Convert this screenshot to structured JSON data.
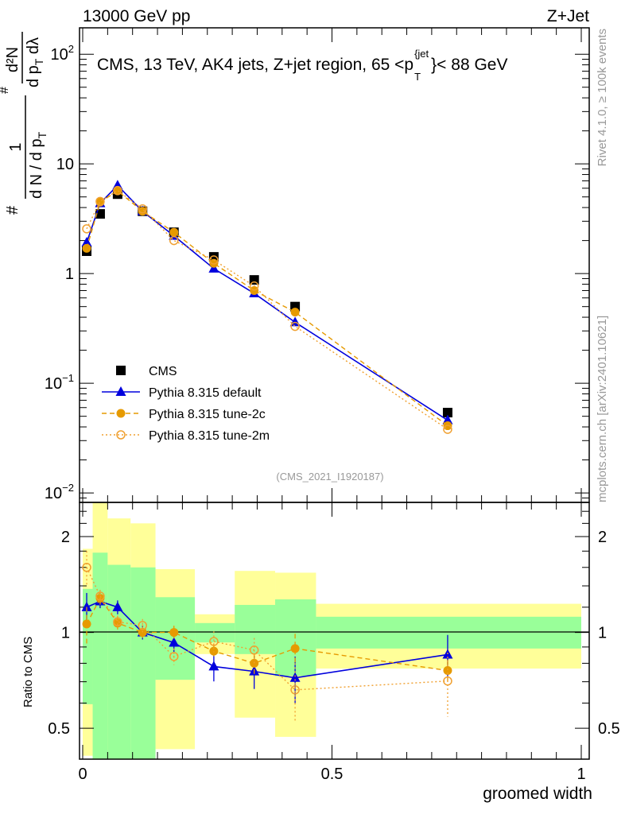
{
  "chart_data": {
    "type": "line",
    "header_left": "13000 GeV pp",
    "header_right": "Z+Jet",
    "title": "CMS, 13 TeV, AK4 jets, Z+jet region, 65 <p",
    "title_sup": "{jet",
    "title_sub": "T",
    "title_end": "}< 88 GeV",
    "analysis_id": "(CMS_2021_I1920187)",
    "side_label_top": "Rivet 4.1.0, ≥ 100k events",
    "side_label_bottom": "mcplots.cern.ch [arXiv:2401.10621]",
    "ylabel_parts": {
      "hash1": "#",
      "num1": "1",
      "den1": "d N / d p",
      "den1_sub": "T",
      "hash2": "#",
      "num2": "d²N",
      "den2": "d p",
      "den2_sub": "T",
      "den2_end": " dλ"
    },
    "xlabel": "groomed width",
    "ratio_ylabel": "Ratio to CMS",
    "xlim": [
      0,
      1
    ],
    "ylim": [
      0.0082,
      174
    ],
    "yscale": "log",
    "ratio_ylim": [
      0.4,
      2.56
    ],
    "x_tick_labels": [
      "0",
      "0.5",
      "1"
    ],
    "x_ticks": [
      0,
      0.5,
      1
    ],
    "y_tick_labels": [
      {
        "v": 100,
        "t": "10",
        "sup": "2"
      },
      {
        "v": 10,
        "t": "10",
        "sup": ""
      },
      {
        "v": 1,
        "t": "1",
        "sup": ""
      },
      {
        "v": 0.1,
        "t": "10",
        "sup": "−1"
      },
      {
        "v": 0.01,
        "t": "10",
        "sup": "−2"
      }
    ],
    "ratio_tick_labels": [
      {
        "v": 2,
        "t": "2"
      },
      {
        "v": 1,
        "t": "1"
      },
      {
        "v": 0.5,
        "t": "0.5"
      }
    ],
    "bin_edges": [
      0,
      0.02,
      0.05,
      0.096,
      0.146,
      0.225,
      0.305,
      0.386,
      0.468,
      1.0
    ],
    "x": [
      0.008,
      0.035,
      0.07,
      0.12,
      0.183,
      0.263,
      0.344,
      0.426,
      0.732
    ],
    "bands": {
      "green": [
        [
          0.595,
          1.37
        ],
        [
          0.3,
          1.78
        ],
        [
          0.3,
          1.63
        ],
        [
          0.3,
          1.6
        ],
        [
          0.71,
          1.29
        ],
        [
          0.93,
          1.07
        ],
        [
          0.855,
          1.22
        ],
        [
          0.73,
          1.27
        ],
        [
          0.89,
          1.12
        ]
      ],
      "yellow": [
        [
          0.41,
          1.83
        ],
        [
          0.3,
          3.0
        ],
        [
          0.3,
          2.28
        ],
        [
          0.3,
          2.2
        ],
        [
          0.43,
          1.58
        ],
        [
          0.855,
          1.14
        ],
        [
          0.54,
          1.56
        ],
        [
          0.47,
          1.54
        ],
        [
          0.77,
          1.23
        ]
      ],
      "green_color": "#99ff99",
      "yellow_color": "#ffff99"
    },
    "series": [
      {
        "name": "CMS",
        "color": "#000000",
        "marker": "square",
        "line": "none",
        "values": [
          1.6,
          3.5,
          5.3,
          3.7,
          2.38,
          1.42,
          0.875,
          0.5,
          0.054
        ]
      },
      {
        "name": "Pythia 8.315 default",
        "color": "#0000dd",
        "marker": "triangle",
        "line": "solid",
        "values": [
          1.92,
          4.38,
          6.36,
          3.7,
          2.21,
          1.11,
          0.66,
          0.36,
          0.046
        ],
        "ratio_err": [
          0.13,
          0.06,
          0.06,
          0.05,
          0.06,
          0.08,
          0.09,
          0.12,
          0.13
        ]
      },
      {
        "name": "Pythia 8.315 tune-2c",
        "color": "#e69a00",
        "marker": "circle",
        "line": "dashed",
        "values": [
          1.7,
          4.48,
          5.67,
          3.7,
          2.38,
          1.24,
          0.7,
          0.445,
          0.041
        ],
        "ratio_err": [
          0.14,
          0.06,
          0.05,
          0.04,
          0.05,
          0.05,
          0.06,
          0.1,
          0.06
        ]
      },
      {
        "name": "Pythia 8.315 tune-2m",
        "color": "#f0a030",
        "marker": "open-circle",
        "line": "dotted",
        "values": [
          2.56,
          4.55,
          5.72,
          3.89,
          2.0,
          1.33,
          0.77,
          0.33,
          0.038
        ],
        "ratio_err": [
          0.2,
          0.06,
          0.05,
          0.05,
          0.05,
          0.07,
          0.08,
          0.14,
          0.16
        ]
      }
    ]
  }
}
